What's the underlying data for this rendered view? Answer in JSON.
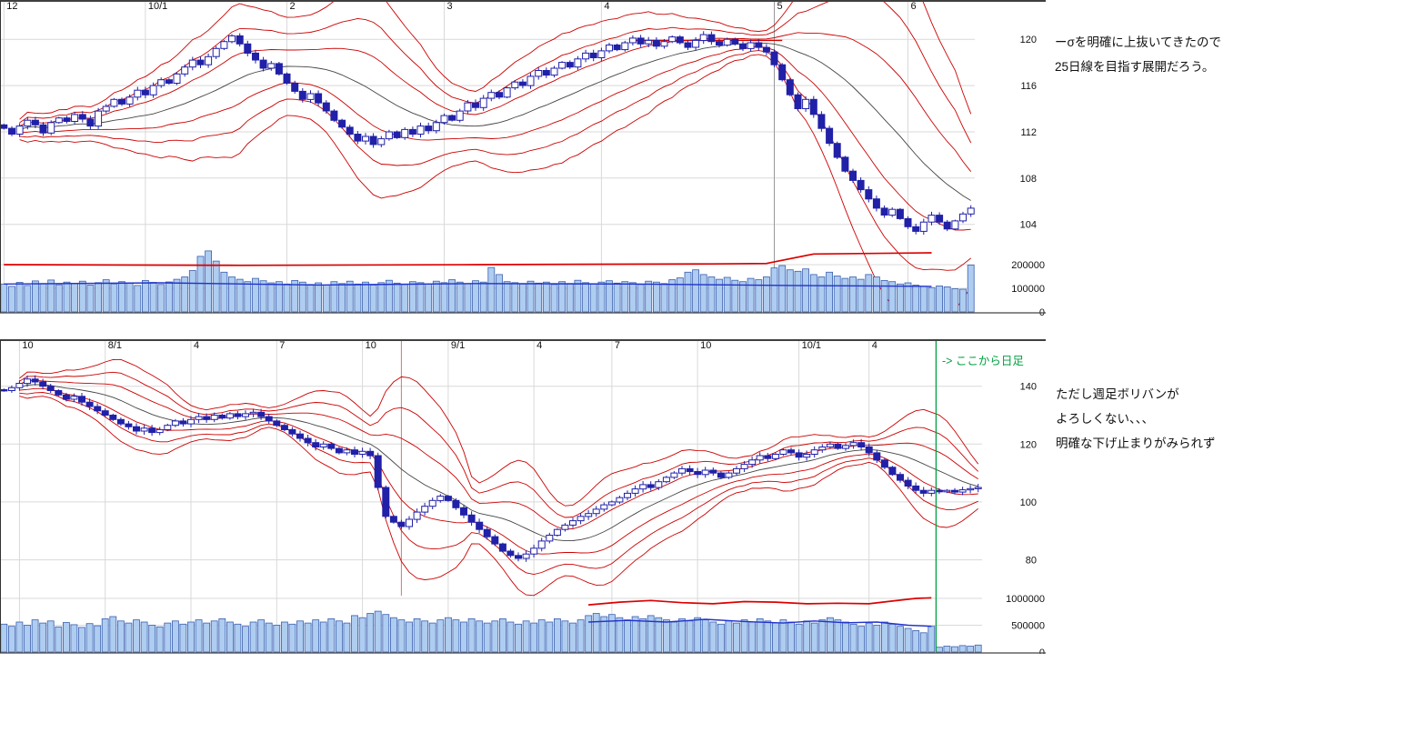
{
  "notes_top": {
    "line1": "ーσを明確に上抜いてきたので",
    "line2": "25日線を目指す展開だろう。"
  },
  "notes_bottom": {
    "line1": "ただし週足ボリバンが",
    "line2": "よろしくない、、、",
    "line3": "明確な下げ止まりがみられず"
  },
  "colors": {
    "candle": "#2020a8",
    "volume_fill": "#aecdf0",
    "volume_stroke": "#3b5fb0",
    "band": "#cc0000",
    "center": "#444444",
    "grid": "#d9d9d9",
    "green": "#00a040",
    "red_line": "#dd0000",
    "blue_line": "#2233cc"
  },
  "chart_data": [
    {
      "type": "candlestick",
      "position": "top",
      "interval": "daily",
      "x_labels": [
        [
          "12",
          0
        ],
        [
          "10/1",
          18
        ],
        [
          "2",
          36
        ],
        [
          "3",
          56
        ],
        [
          "4",
          76
        ],
        [
          "5",
          98
        ],
        [
          "6",
          115
        ]
      ],
      "y_ticks": [
        120,
        116,
        112,
        108,
        104
      ],
      "ylim": [
        102.8,
        122.45
      ],
      "vol_ticks": [
        200000,
        100000,
        0
      ],
      "vol_max": 300000,
      "band_window": 20,
      "closes": [
        112.3,
        111.8,
        112.5,
        113.0,
        112.6,
        111.9,
        112.8,
        113.2,
        112.9,
        113.5,
        113.1,
        112.5,
        113.8,
        114.2,
        114.8,
        114.4,
        115.0,
        115.6,
        115.2,
        116.0,
        116.5,
        116.2,
        117.0,
        117.6,
        118.2,
        117.8,
        118.5,
        119.2,
        119.8,
        120.3,
        119.6,
        118.8,
        118.2,
        117.5,
        117.9,
        117.0,
        116.2,
        115.5,
        114.8,
        115.3,
        114.5,
        113.8,
        113.0,
        112.4,
        111.8,
        111.2,
        111.6,
        110.9,
        111.4,
        112.0,
        111.5,
        112.2,
        111.8,
        112.5,
        112.1,
        112.8,
        113.4,
        113.0,
        113.8,
        114.5,
        114.1,
        114.9,
        115.4,
        115.0,
        115.8,
        116.3,
        116.0,
        116.8,
        117.3,
        116.9,
        117.5,
        118.0,
        117.6,
        118.3,
        118.8,
        118.4,
        119.0,
        119.5,
        119.1,
        119.7,
        120.1,
        119.6,
        119.9,
        119.4,
        119.8,
        120.2,
        119.7,
        119.3,
        119.9,
        120.4,
        119.8,
        119.5,
        120.0,
        119.6,
        119.2,
        119.7,
        119.3,
        118.9,
        117.8,
        116.5,
        115.2,
        114.0,
        114.8,
        113.5,
        112.3,
        111.0,
        109.8,
        108.6,
        107.8,
        107.0,
        106.2,
        105.4,
        104.8,
        105.3,
        104.5,
        103.8,
        103.4,
        104.2,
        104.8,
        104.2,
        103.6,
        104.3,
        104.9,
        105.4
      ],
      "volumes": [
        118000,
        108000,
        125000,
        112000,
        131000,
        120000,
        135000,
        115000,
        126000,
        121000,
        130000,
        114000,
        124000,
        136000,
        119000,
        128000,
        122000,
        112000,
        133000,
        125000,
        116000,
        127000,
        138000,
        148000,
        175000,
        235000,
        258000,
        215000,
        168000,
        148000,
        138000,
        128000,
        142000,
        132000,
        123000,
        128000,
        118000,
        133000,
        126000,
        116000,
        123000,
        113000,
        128000,
        120000,
        130000,
        118000,
        126000,
        114000,
        124000,
        134000,
        122000,
        116000,
        128000,
        124000,
        118000,
        130000,
        124000,
        136000,
        126000,
        120000,
        132000,
        126000,
        188000,
        158000,
        128000,
        124000,
        118000,
        130000,
        122000,
        126000,
        116000,
        128000,
        120000,
        134000,
        124000,
        118000,
        126000,
        132000,
        122000,
        128000,
        124000,
        116000,
        130000,
        126000,
        120000,
        136000,
        144000,
        168000,
        178000,
        158000,
        148000,
        138000,
        146000,
        134000,
        128000,
        142000,
        136000,
        148000,
        186000,
        196000,
        178000,
        172000,
        182000,
        158000,
        148000,
        168000,
        152000,
        142000,
        148000,
        138000,
        158000,
        148000,
        133000,
        128000,
        118000,
        123000,
        113000,
        108000,
        103000,
        110000,
        106000,
        98000,
        96000,
        198000
      ],
      "vol_ma_red": [
        [
          0,
          200000
        ],
        [
          30,
          197000
        ],
        [
          60,
          200000
        ],
        [
          90,
          203000
        ],
        [
          97,
          205000
        ],
        [
          103,
          245000
        ],
        [
          118,
          250000
        ]
      ],
      "vol_ma_blue": [
        [
          0,
          118000
        ],
        [
          20,
          123000
        ],
        [
          40,
          114000
        ],
        [
          60,
          120000
        ],
        [
          80,
          118000
        ],
        [
          100,
          112000
        ],
        [
          118,
          108000
        ]
      ],
      "red_hline": {
        "price": 119.9,
        "i1": 80,
        "i2": 99
      },
      "dark_vline_i": 98
    },
    {
      "type": "candlestick",
      "position": "bottom",
      "interval": "weekly-then-daily",
      "x_labels": [
        [
          "10",
          2
        ],
        [
          "8/1",
          13
        ],
        [
          "4",
          24
        ],
        [
          "7",
          35
        ],
        [
          "10",
          46
        ],
        [
          "9/1",
          57
        ],
        [
          "4",
          68
        ],
        [
          "7",
          78
        ],
        [
          "10",
          89
        ],
        [
          "10/1",
          102
        ],
        [
          "4",
          111
        ]
      ],
      "y_ticks": [
        140,
        120,
        100,
        80
      ],
      "ylim": [
        72,
        155
      ],
      "vol_ticks": [
        1000000,
        500000,
        0
      ],
      "vol_max": 1220000,
      "band_window": 13,
      "closes": [
        138.5,
        139.5,
        141.0,
        142.5,
        141.5,
        140.0,
        138.5,
        137.0,
        135.5,
        136.5,
        134.5,
        133.0,
        131.5,
        130.0,
        128.5,
        127.0,
        126.0,
        124.5,
        125.5,
        124.0,
        125.0,
        126.5,
        128.0,
        127.0,
        128.5,
        129.5,
        128.5,
        130.0,
        129.0,
        130.5,
        129.5,
        130.5,
        131.0,
        129.5,
        128.0,
        126.5,
        125.0,
        123.5,
        122.0,
        120.5,
        119.0,
        120.0,
        118.5,
        117.0,
        118.0,
        116.5,
        117.5,
        116.0,
        105.0,
        95.0,
        93.0,
        91.5,
        94.0,
        96.5,
        98.5,
        100.5,
        102.0,
        100.5,
        98.0,
        95.5,
        93.0,
        90.5,
        88.0,
        85.5,
        83.0,
        81.5,
        80.5,
        82.0,
        84.0,
        86.5,
        88.5,
        90.5,
        92.0,
        93.5,
        95.0,
        96.0,
        97.5,
        99.0,
        100.0,
        101.5,
        103.0,
        104.5,
        106.0,
        105.0,
        107.0,
        108.5,
        110.0,
        111.5,
        110.5,
        109.5,
        111.0,
        110.0,
        108.5,
        110.0,
        111.5,
        113.0,
        114.5,
        116.0,
        115.0,
        116.5,
        118.0,
        117.0,
        115.5,
        116.5,
        118.0,
        119.0,
        120.0,
        118.5,
        119.5,
        120.5,
        119.0,
        117.0,
        114.5,
        112.0,
        109.5,
        107.5,
        105.5,
        104.0,
        103.0,
        104.0,
        103.5,
        104.0,
        103.4,
        104.2,
        104.6,
        105.0
      ],
      "volumes": [
        520000,
        480000,
        560000,
        500000,
        600000,
        540000,
        580000,
        470000,
        550000,
        510000,
        460000,
        530000,
        490000,
        620000,
        660000,
        580000,
        540000,
        600000,
        560000,
        500000,
        470000,
        540000,
        580000,
        520000,
        560000,
        600000,
        540000,
        580000,
        620000,
        560000,
        520000,
        480000,
        560000,
        600000,
        540000,
        500000,
        560000,
        520000,
        580000,
        540000,
        600000,
        560000,
        620000,
        580000,
        540000,
        680000,
        640000,
        720000,
        760000,
        700000,
        640000,
        600000,
        560000,
        620000,
        580000,
        540000,
        600000,
        640000,
        600000,
        560000,
        620000,
        580000,
        540000,
        580000,
        620000,
        560000,
        520000,
        580000,
        540000,
        600000,
        560000,
        620000,
        580000,
        540000,
        600000,
        680000,
        720000,
        660000,
        700000,
        640000,
        600000,
        660000,
        620000,
        680000,
        640000,
        600000,
        560000,
        620000,
        580000,
        640000,
        600000,
        560000,
        520000,
        580000,
        540000,
        600000,
        560000,
        620000,
        580000,
        540000,
        600000,
        560000,
        520000,
        580000,
        540000,
        600000,
        640000,
        600000,
        560000,
        520000,
        480000,
        540000,
        500000,
        560000,
        520000,
        480000,
        440000,
        400000,
        360000,
        480000,
        90000,
        110000,
        100000,
        120000,
        110000,
        130000
      ],
      "vol_ma_red": [
        [
          75,
          880000
        ],
        [
          79,
          930000
        ],
        [
          83,
          960000
        ],
        [
          87,
          920000
        ],
        [
          91,
          900000
        ],
        [
          95,
          940000
        ],
        [
          99,
          930000
        ],
        [
          103,
          900000
        ],
        [
          107,
          910000
        ],
        [
          111,
          900000
        ],
        [
          114,
          950000
        ],
        [
          117,
          1000000
        ],
        [
          119,
          1010000
        ]
      ],
      "vol_ma_blue": [
        [
          75,
          560000
        ],
        [
          80,
          590000
        ],
        [
          85,
          560000
        ],
        [
          90,
          610000
        ],
        [
          95,
          570000
        ],
        [
          100,
          540000
        ],
        [
          104,
          580000
        ],
        [
          108,
          545000
        ],
        [
          112,
          560000
        ],
        [
          116,
          500000
        ],
        [
          119,
          480000
        ]
      ],
      "red_vline_i": 51,
      "green_vline": {
        "i": 119.6,
        "label": "-> ここから日足"
      }
    }
  ]
}
